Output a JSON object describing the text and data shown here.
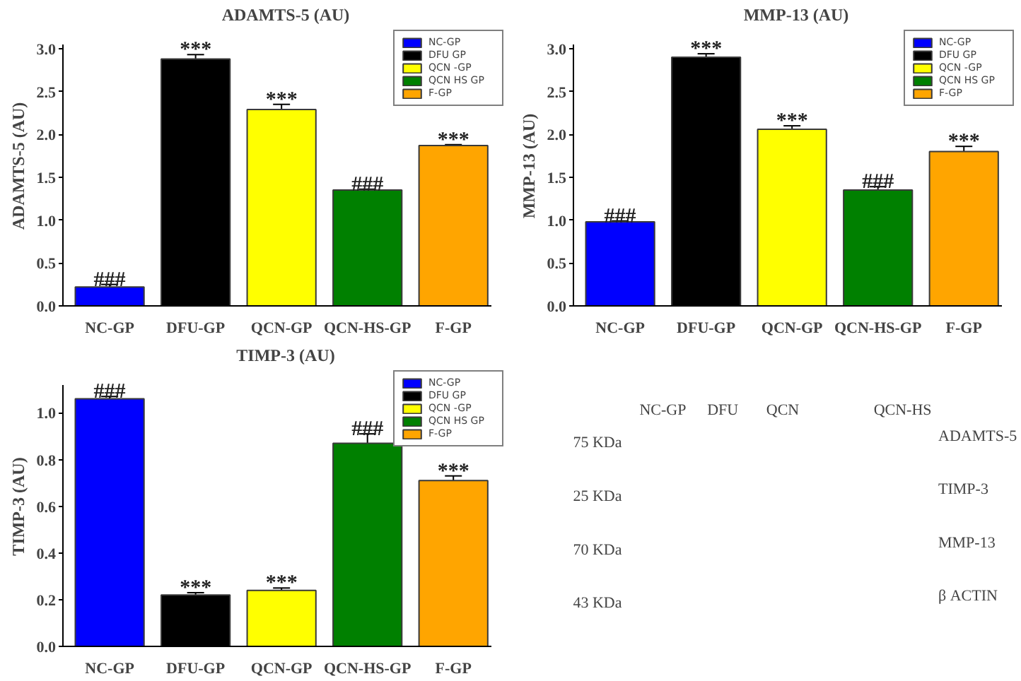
{
  "chart_data": [
    {
      "type": "bar",
      "title": "ADAMTS-5 (AU)",
      "ylabel": "ADAMTS-5 (AU)",
      "categories": [
        "NC-GP",
        "DFU-GP",
        "QCN-GP",
        "QCN-HS-GP",
        "F-GP"
      ],
      "series": [
        {
          "name": "NC-GP",
          "color": "#0000ff",
          "values": [
            0.22,
            null,
            null,
            null,
            null
          ],
          "errors": [
            0.03,
            null,
            null,
            null,
            null
          ]
        },
        {
          "name": "DFU GP",
          "color": "#000000",
          "values": [
            null,
            2.88,
            null,
            null,
            null
          ],
          "errors": [
            null,
            0.05,
            null,
            null,
            null
          ]
        },
        {
          "name": "QCN -GP",
          "color": "#ffff00",
          "values": [
            null,
            null,
            2.29,
            null,
            null
          ],
          "errors": [
            null,
            null,
            0.06,
            null,
            null
          ]
        },
        {
          "name": "QCN HS GP",
          "color": "#008000",
          "values": [
            null,
            null,
            null,
            1.35,
            null
          ],
          "errors": [
            null,
            null,
            null,
            0.01,
            null
          ]
        },
        {
          "name": "F-GP",
          "color": "#ffa500",
          "values": [
            null,
            null,
            null,
            null,
            1.87
          ],
          "errors": [
            null,
            null,
            null,
            null,
            0.01
          ]
        }
      ],
      "ylim": [
        0,
        3.05
      ],
      "yticks": [
        {
          "value": 0,
          "label": "0.0"
        },
        0.5,
        {
          "value": 1,
          "label": "1.0"
        },
        1.5,
        {
          "value": 2,
          "label": "2.0"
        },
        2.5,
        {
          "value": 3,
          "label": "3.0"
        }
      ],
      "legend": "top right",
      "annotations": [
        {
          "text": "###",
          "x": "NC-GP",
          "y": 0.25
        },
        {
          "text": "***",
          "x": "DFU-GP",
          "y": 2.93
        },
        {
          "text": "***",
          "x": "QCN-GP",
          "y": 2.35
        },
        {
          "text": "###",
          "x": "QCN-HS-GP",
          "y": 1.36
        },
        {
          "text": "***",
          "x": "F-GP",
          "y": 1.88
        }
      ]
    },
    {
      "type": "bar",
      "title": "MMP-13 (AU)",
      "ylabel": "MMP-13 (AU)",
      "categories": [
        "NC-GP",
        "DFU-GP",
        "QCN-GP",
        "QCN-HS-GP",
        "F-GP"
      ],
      "series": [
        {
          "name": "NC-GP",
          "color": "#0000ff",
          "values": [
            0.98,
            null,
            null,
            null,
            null
          ],
          "errors": [
            0.01,
            null,
            null,
            null,
            null
          ]
        },
        {
          "name": "DFU GP",
          "color": "#000000",
          "values": [
            null,
            2.9,
            null,
            null,
            null
          ],
          "errors": [
            null,
            0.04,
            null,
            null,
            null
          ]
        },
        {
          "name": "QCN -GP",
          "color": "#ffff00",
          "values": [
            null,
            null,
            2.06,
            null,
            null
          ],
          "errors": [
            null,
            null,
            0.04,
            null,
            null
          ]
        },
        {
          "name": "QCN HS GP",
          "color": "#008000",
          "values": [
            null,
            null,
            null,
            1.35,
            null
          ],
          "errors": [
            null,
            null,
            null,
            0.04,
            null
          ]
        },
        {
          "name": "F-GP",
          "color": "#ffa500",
          "values": [
            null,
            null,
            null,
            null,
            1.8
          ],
          "errors": [
            null,
            null,
            null,
            null,
            0.06
          ]
        }
      ],
      "ylim": [
        0,
        3.05
      ],
      "yticks": [
        {
          "value": 0,
          "label": "0.0"
        },
        0.5,
        {
          "value": 1,
          "label": "1.0"
        },
        1.5,
        {
          "value": 2,
          "label": "2.0"
        },
        2.5,
        {
          "value": 3,
          "label": "3.0"
        }
      ],
      "legend": "top right",
      "annotations": [
        {
          "text": "###",
          "x": "NC-GP",
          "y": 0.99
        },
        {
          "text": "***",
          "x": "DFU-GP",
          "y": 2.94
        },
        {
          "text": "***",
          "x": "QCN-GP",
          "y": 2.1
        },
        {
          "text": "###",
          "x": "QCN-HS-GP",
          "y": 1.39
        },
        {
          "text": "***",
          "x": "F-GP",
          "y": 1.86
        }
      ]
    },
    {
      "type": "bar",
      "title": "TIMP-3 (AU)",
      "ylabel": "TIMP-3 (AU)",
      "categories": [
        "NC-GP",
        "DFU-GP",
        "QCN-GP",
        "QCN-HS-GP",
        "F-GP"
      ],
      "series": [
        {
          "name": "NC-GP",
          "color": "#0000ff",
          "values": [
            1.06,
            null,
            null,
            null,
            null
          ],
          "errors": [
            0.01,
            null,
            null,
            null,
            null
          ]
        },
        {
          "name": "DFU GP",
          "color": "#000000",
          "values": [
            null,
            0.22,
            null,
            null,
            null
          ],
          "errors": [
            null,
            0.01,
            null,
            null,
            null
          ]
        },
        {
          "name": "QCN -GP",
          "color": "#ffff00",
          "values": [
            null,
            null,
            0.24,
            null,
            null
          ],
          "errors": [
            null,
            null,
            0.01,
            null,
            null
          ]
        },
        {
          "name": "QCN HS GP",
          "color": "#008000",
          "values": [
            null,
            null,
            null,
            0.87,
            null
          ],
          "errors": [
            null,
            null,
            null,
            0.04,
            null
          ]
        },
        {
          "name": "F-GP",
          "color": "#ffa500",
          "values": [
            null,
            null,
            null,
            null,
            0.71
          ],
          "errors": [
            null,
            null,
            null,
            null,
            0.02
          ]
        }
      ],
      "ylim": [
        0,
        1.12
      ],
      "yticks": [
        {
          "value": 0,
          "label": "0.0"
        },
        0.2,
        0.4,
        0.6,
        0.8,
        {
          "value": 1,
          "label": "1.0"
        }
      ],
      "legend": "top right",
      "annotations": [
        {
          "text": "###",
          "x": "NC-GP",
          "y": 1.07
        },
        {
          "text": "***",
          "x": "DFU-GP",
          "y": 0.23
        },
        {
          "text": "***",
          "x": "QCN-GP",
          "y": 0.25
        },
        {
          "text": "###",
          "x": "QCN-HS-GP",
          "y": 0.91
        },
        {
          "text": "***",
          "x": "F-GP",
          "y": 0.73
        }
      ]
    },
    {
      "type": "other",
      "categories": [
        "NC-GP",
        "DFU",
        "QCN",
        null,
        "QCN-HS"
      ],
      "y_categories": [
        "75 KDa",
        "25 KDa",
        "70 KDa",
        "43 KDa"
      ],
      "y2_categories": [
        "ADAMTS-5",
        "TIMP-3",
        "MMP-13",
        "β ACTIN"
      ]
    }
  ]
}
